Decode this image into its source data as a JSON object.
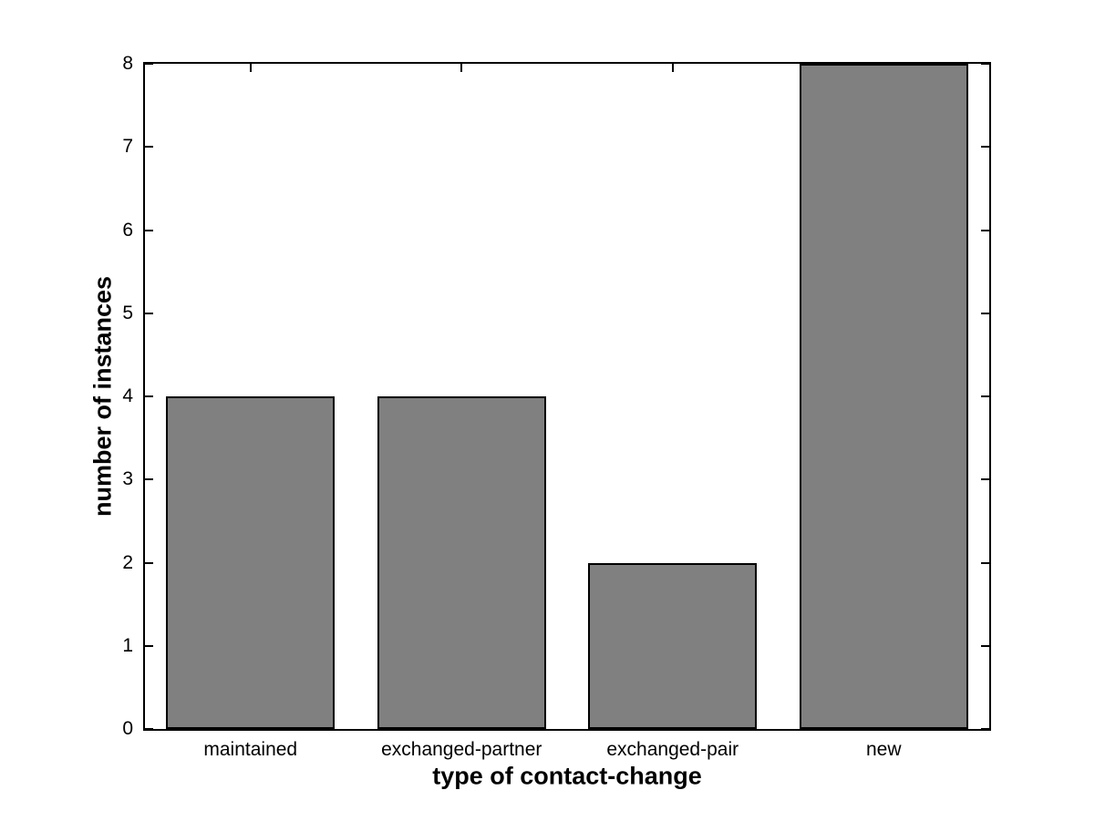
{
  "chart_data": {
    "type": "bar",
    "categories": [
      "maintained",
      "exchanged-partner",
      "exchanged-pair",
      "new"
    ],
    "values": [
      4,
      4,
      2,
      8
    ],
    "title": "",
    "xlabel": "type of contact-change",
    "ylabel": "number of instances",
    "ylim": [
      0,
      8
    ],
    "xlim": [
      0.5,
      4.5
    ],
    "yticks": [
      0,
      1,
      2,
      3,
      4,
      5,
      6,
      7,
      8
    ],
    "bar_width_fraction": 0.8,
    "bar_color": "#808080",
    "bar_edge_color": "#000000",
    "axis_color": "#000000",
    "background_color": "#ffffff",
    "grid": false,
    "legend": "none",
    "tick_style": "inward-all-sides"
  }
}
